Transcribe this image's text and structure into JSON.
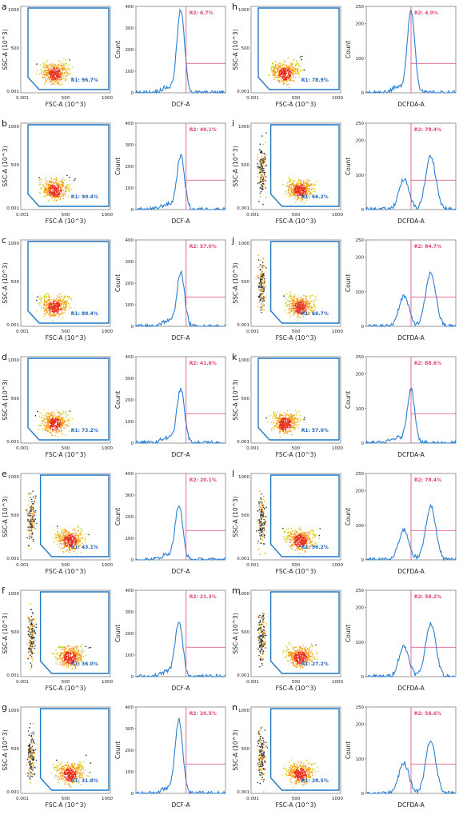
{
  "figure": {
    "panels": [
      {
        "letter": "a",
        "r1": "R1: 96.7%",
        "r2": "R2: 6.7%",
        "hist_xlabel": "DCF-A",
        "hist_ymax": "400",
        "hist_yticks": [
          "0",
          "100",
          "200",
          "300",
          "400"
        ],
        "pattern": "single"
      },
      {
        "letter": "b",
        "r1": "R1: 90.4%",
        "r2": "R2: 49.1%",
        "hist_xlabel": "DCF-A",
        "hist_ymax": "400",
        "hist_yticks": [
          "0",
          "100",
          "200",
          "300",
          "400"
        ],
        "pattern": "single"
      },
      {
        "letter": "c",
        "r1": "R1: 88.4%",
        "r2": "R2: 57.0%",
        "hist_xlabel": "DCF-A",
        "hist_ymax": "400",
        "hist_yticks": [
          "0",
          "100",
          "200",
          "300",
          "400"
        ],
        "pattern": "single"
      },
      {
        "letter": "d",
        "r1": "R1: 73.2%",
        "r2": "R2: 41.6%",
        "hist_xlabel": "DCF-A",
        "hist_ymax": "400",
        "hist_yticks": [
          "0",
          "100",
          "200",
          "300",
          "400"
        ],
        "pattern": "single"
      },
      {
        "letter": "e",
        "r1": "R1: 43.1%",
        "r2": "R2: 20.1%",
        "hist_xlabel": "DCF-A",
        "hist_ymax": "400",
        "hist_yticks": [
          "0",
          "100",
          "200",
          "300",
          "400"
        ],
        "pattern": "double"
      },
      {
        "letter": "f",
        "r1": "R1: 36.0%",
        "r2": "R2: 21.3%",
        "hist_xlabel": "DCF-A",
        "hist_ymax": "400",
        "hist_yticks": [
          "0",
          "100",
          "200",
          "300",
          "400"
        ],
        "pattern": "double"
      },
      {
        "letter": "g",
        "r1": "R1: 31.8%",
        "r2": "R2: 20.5%",
        "hist_xlabel": "DCF-A",
        "hist_ymax": "400",
        "hist_yticks": [
          "0",
          "100",
          "200",
          "300",
          "400"
        ],
        "pattern": "double"
      },
      {
        "letter": "h",
        "r1": "R1: 78.9%",
        "r2": "R2: 4.9%",
        "hist_xlabel": "DCFDA-A",
        "hist_ymax": "250",
        "hist_yticks": [
          "0",
          "100",
          "200",
          "250"
        ],
        "pattern": "single"
      },
      {
        "letter": "i",
        "r1": "R1: 66.2%",
        "r2": "R2: 78.4%",
        "hist_xlabel": "DCFDA-A",
        "hist_ymax": "250",
        "hist_yticks": [
          "0",
          "100",
          "200",
          "250"
        ],
        "pattern": "double"
      },
      {
        "letter": "j",
        "r1": "R1: 66.7%",
        "r2": "R2: 84.7%",
        "hist_xlabel": "DCFDA-A",
        "hist_ymax": "250",
        "hist_yticks": [
          "0",
          "100",
          "200",
          "250"
        ],
        "pattern": "double"
      },
      {
        "letter": "k",
        "r1": "R1: 57.0%",
        "r2": "R2: 88.6%",
        "hist_xlabel": "DCFDA-A",
        "hist_ymax": "250",
        "hist_yticks": [
          "0",
          "100",
          "200",
          "250"
        ],
        "pattern": "single"
      },
      {
        "letter": "l",
        "r1": "R1: 96.2%",
        "r2": "R2: 78.4%",
        "hist_xlabel": "DCFDA-A",
        "hist_ymax": "250",
        "hist_yticks": [
          "0",
          "100",
          "200",
          "250"
        ],
        "pattern": "double"
      },
      {
        "letter": "m",
        "r1": "R1: 27.2%",
        "r2": "R2: 58.2%",
        "hist_xlabel": "DCFDA-A",
        "hist_ymax": "250",
        "hist_yticks": [
          "0",
          "100",
          "200",
          "250"
        ],
        "pattern": "double"
      },
      {
        "letter": "n",
        "r1": "R1: 28.5%",
        "r2": "R2: 56.6%",
        "hist_xlabel": "DCFDA-A",
        "hist_ymax": "250",
        "hist_yticks": [
          "0",
          "100",
          "200",
          "250"
        ],
        "pattern": "double"
      }
    ],
    "scatter_xlabel": "FSC-A (10^3)",
    "scatter_ylabel": "SSC-A (10^3)",
    "scatter_xticks": [
      "0.001",
      "500",
      "1000"
    ],
    "scatter_yticks": [
      "0.001",
      "500",
      "1000"
    ],
    "hist_ylabel": "Count",
    "colors": {
      "gate": "#1f77c4",
      "hist_line": "#2a7fd4",
      "marker": "#e0457a",
      "r1_text": "#2266bb",
      "r2_text": "#e0457a"
    }
  }
}
